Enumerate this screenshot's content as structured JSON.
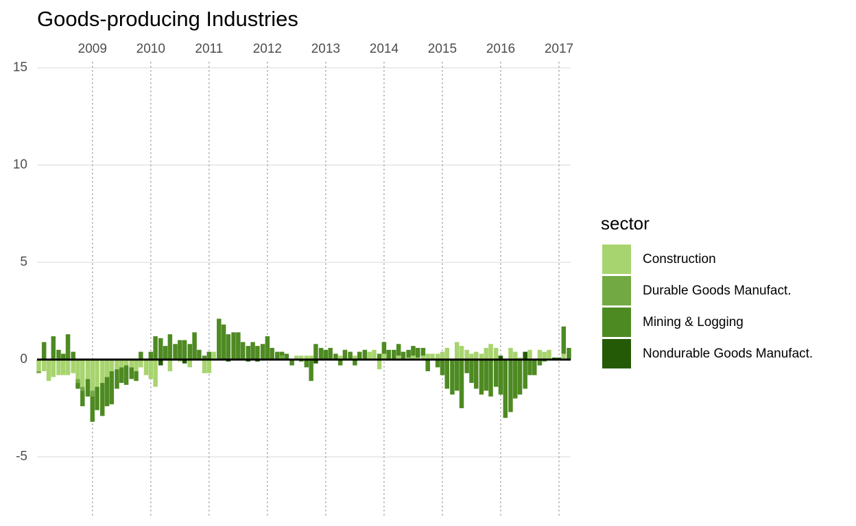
{
  "chart_data": {
    "type": "stacked-bar",
    "title": "Goods-producing Industries",
    "legend_title": "sector",
    "x": [
      2008.08,
      2008.17,
      2008.25,
      2008.33,
      2008.42,
      2008.5,
      2008.58,
      2008.67,
      2008.75,
      2008.83,
      2008.92,
      2009,
      2009.08,
      2009.17,
      2009.25,
      2009.33,
      2009.42,
      2009.5,
      2009.58,
      2009.67,
      2009.75,
      2009.83,
      2009.92,
      2010,
      2010.08,
      2010.17,
      2010.25,
      2010.33,
      2010.42,
      2010.5,
      2010.58,
      2010.67,
      2010.75,
      2010.83,
      2010.92,
      2011,
      2011.08,
      2011.17,
      2011.25,
      2011.33,
      2011.42,
      2011.5,
      2011.58,
      2011.67,
      2011.75,
      2011.83,
      2011.92,
      2012,
      2012.08,
      2012.17,
      2012.25,
      2012.33,
      2012.42,
      2012.5,
      2012.58,
      2012.67,
      2012.75,
      2012.83,
      2012.92,
      2013,
      2013.08,
      2013.17,
      2013.25,
      2013.33,
      2013.42,
      2013.5,
      2013.58,
      2013.67,
      2013.75,
      2013.83,
      2013.92,
      2014,
      2014.08,
      2014.17,
      2014.25,
      2014.33,
      2014.42,
      2014.5,
      2014.58,
      2014.67,
      2014.75,
      2014.83,
      2014.92,
      2015,
      2015.08,
      2015.17,
      2015.25,
      2015.33,
      2015.42,
      2015.5,
      2015.58,
      2015.67,
      2015.75,
      2015.83,
      2015.92,
      2016,
      2016.08,
      2016.17,
      2016.25,
      2016.33,
      2016.42,
      2016.5,
      2016.58,
      2016.67,
      2016.75,
      2016.83,
      2016.92,
      2017,
      2017.08,
      2017.17
    ],
    "series": [
      {
        "name": "Construction",
        "color": "#a8d46f",
        "values": [
          -0.6,
          -0.6,
          -1.1,
          -0.9,
          -0.8,
          -0.8,
          -0.8,
          -0.7,
          -1.0,
          -1.4,
          -1.0,
          -1.6,
          -1.4,
          -1.2,
          -0.9,
          -0.6,
          -0.5,
          -0.4,
          -0.3,
          -0.4,
          -0.6,
          -0.4,
          -0.8,
          -1.0,
          -1.4,
          0,
          0,
          -0.6,
          0,
          -0.1,
          0,
          -0.4,
          0,
          0,
          -0.7,
          -0.7,
          0.4,
          0,
          0,
          0,
          0,
          0,
          0,
          0,
          0,
          0,
          0,
          0,
          0,
          0,
          0,
          0,
          0,
          0.2,
          0.2,
          0.2,
          0.2,
          0,
          0,
          0,
          0,
          0,
          0.2,
          0,
          0,
          0.2,
          0,
          0,
          0.4,
          0.5,
          -0.5,
          0.3,
          0,
          0,
          0.2,
          0,
          0.1,
          0.2,
          0.1,
          0.2,
          0.3,
          0.3,
          0.3,
          0.4,
          0.6,
          0,
          0.9,
          0.7,
          0.5,
          0.3,
          0.4,
          0.3,
          0.6,
          0.8,
          0.6,
          0,
          0,
          0.6,
          0.4,
          0.1,
          0,
          0.5,
          0,
          0.5,
          0.4,
          0.5,
          0,
          0,
          0.3,
          0
        ]
      },
      {
        "name": "Durable Goods Manufact.",
        "color": "#73a942",
        "values": [
          -0.1,
          0,
          0,
          0,
          0,
          0,
          0,
          0,
          -0.2,
          -0.2,
          0,
          -0.3,
          0,
          0,
          0,
          0,
          0,
          0,
          0,
          0,
          0,
          0,
          0,
          0,
          0,
          0,
          0,
          0,
          0,
          0,
          0,
          0,
          0,
          0,
          0,
          0,
          0,
          0,
          0,
          0,
          0,
          0,
          0,
          0,
          0,
          0,
          0,
          0,
          0,
          0,
          0.2,
          0,
          0,
          0,
          0,
          0,
          0,
          0,
          0,
          0,
          0,
          0,
          0,
          0,
          0,
          0,
          0,
          0,
          0,
          0,
          0,
          0,
          0,
          0,
          0,
          0,
          0,
          0,
          0,
          0,
          0,
          0,
          0,
          0,
          0,
          0,
          0,
          0,
          0,
          0,
          0,
          0,
          0,
          0,
          0,
          0,
          0,
          0,
          0,
          0,
          0,
          0,
          0,
          0,
          0,
          0,
          0,
          0,
          0,
          0
        ]
      },
      {
        "name": "Mining & Logging",
        "color": "#4e8a22",
        "values": [
          0,
          0.9,
          0,
          1.2,
          0.5,
          0.3,
          1.3,
          0.4,
          -0.3,
          -0.8,
          -0.9,
          -1.3,
          -1.2,
          -1.7,
          -1.5,
          -1.7,
          -1.0,
          -0.8,
          -1.0,
          -0.6,
          -0.5,
          0.4,
          0,
          0.4,
          1.2,
          1.1,
          0.7,
          1.3,
          0.8,
          1.0,
          1.0,
          0.8,
          1.4,
          0.5,
          0.2,
          0.4,
          0,
          2.1,
          1.8,
          1.3,
          1.4,
          1.4,
          0.9,
          0.7,
          0.9,
          0.7,
          0.8,
          1.2,
          0.6,
          0.4,
          0.2,
          0.3,
          -0.3,
          0,
          -0.1,
          -0.4,
          -1.1,
          0.8,
          0.6,
          0.5,
          0.6,
          0.3,
          -0.3,
          0.5,
          0.4,
          -0.3,
          0.4,
          0.5,
          0,
          0,
          0.3,
          0.6,
          0.5,
          0.5,
          0.6,
          0.4,
          0.4,
          0.5,
          0.5,
          0.4,
          -0.6,
          0,
          -0.4,
          -0.8,
          -1.5,
          -1.8,
          -1.6,
          -2.5,
          -0.7,
          -1.2,
          -1.5,
          -1.8,
          -1.6,
          -1.9,
          -1.4,
          -1.8,
          -3.0,
          -2.7,
          -2.0,
          -1.8,
          -1.5,
          -0.8,
          -0.8,
          -0.3,
          -0.1,
          0,
          0,
          0,
          1.4,
          0.6
        ]
      },
      {
        "name": "Nondurable Goods Manufact.",
        "color": "#245a05",
        "values": [
          0,
          0,
          0,
          0,
          0,
          0,
          0,
          0,
          0,
          0,
          0,
          0,
          0,
          0,
          0,
          0,
          0,
          0,
          0,
          0,
          0,
          0,
          0,
          0,
          0,
          -0.3,
          0,
          0,
          0,
          0,
          -0.2,
          0,
          0,
          0,
          0,
          0,
          0,
          0,
          0,
          -0.1,
          0,
          0,
          0,
          -0.1,
          0,
          -0.1,
          0,
          0,
          0,
          0,
          0,
          0,
          0,
          0,
          0,
          0,
          0,
          -0.2,
          0,
          0,
          0,
          0,
          0,
          0,
          0,
          0,
          0,
          0,
          0,
          0,
          0,
          0,
          0,
          0,
          0,
          0,
          0,
          0,
          0,
          0,
          0,
          0,
          0,
          0,
          0,
          0,
          0,
          0,
          0,
          0,
          0,
          0,
          0,
          0,
          0,
          0.2,
          0,
          0,
          0,
          0,
          0.4,
          0,
          0,
          0,
          0,
          0,
          0.1,
          0.1,
          0,
          0
        ]
      }
    ],
    "xlim": [
      2008.05,
      2017.2
    ],
    "xticks": [
      2009,
      2010,
      2011,
      2012,
      2013,
      2014,
      2015,
      2016,
      2017
    ],
    "ylim": [
      -8.1,
      15.3
    ],
    "yticks": [
      -5,
      0,
      5,
      10,
      15
    ],
    "grid": true
  }
}
